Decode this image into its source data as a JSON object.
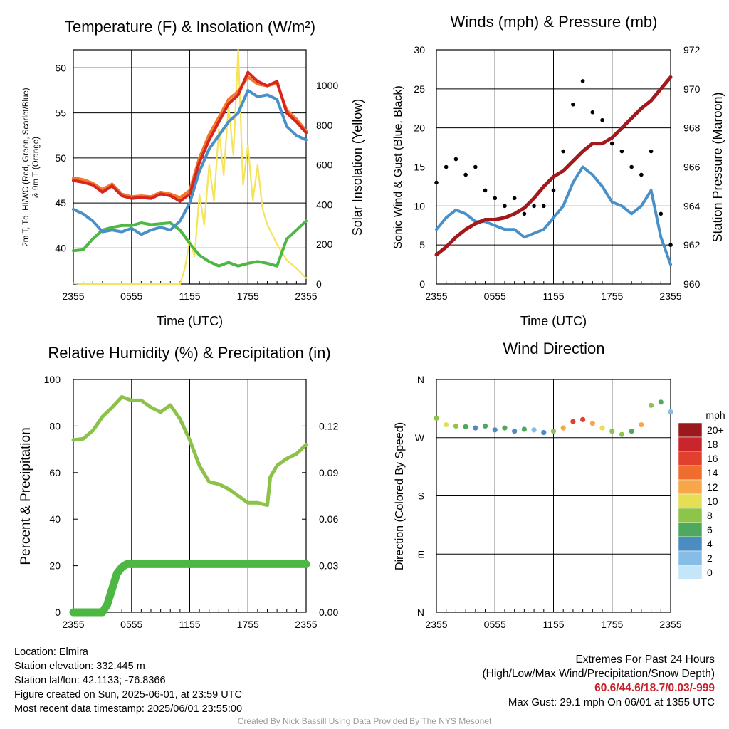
{
  "colors": {
    "temp": "#d7261e",
    "heatindex": "#f0792b",
    "dewpoint": "#4db744",
    "scarlet": "#4a90c8",
    "solar": "#f5e35a",
    "pressure": "#a3181b",
    "sonic": "#4a90c8",
    "gust": "#000000",
    "rh": "#8cc24a",
    "precip": "#4db744"
  },
  "time_ticks": [
    "2355",
    "0555",
    "1155",
    "1755",
    "2355"
  ],
  "chart_data": [
    {
      "type": "line",
      "title": "Temperature (F) & Insolation (W/m²)",
      "xlabel": "Time (UTC)",
      "ylabel_left_lines": [
        "2m T, Td, HI/WC (Red, Green, Scarlet/Blue)",
        "& 9m T (Orange)"
      ],
      "ylabel_right": "Solar Insolation (Yellow)",
      "ylim_left": [
        36,
        62
      ],
      "ylim_right": [
        0,
        1180
      ],
      "yticks_left": [
        40,
        45,
        50,
        55,
        60
      ],
      "yticks_right": [
        0,
        200,
        400,
        600,
        800,
        1000
      ],
      "x_hours": [
        0,
        1,
        2,
        3,
        4,
        5,
        6,
        7,
        8,
        9,
        10,
        11,
        12,
        13,
        14,
        15,
        16,
        17,
        18,
        19,
        20,
        21,
        22,
        23,
        24
      ],
      "series": [
        {
          "name": "2m T",
          "color_key": "temp",
          "axis": "left",
          "x": [
            0,
            1,
            2,
            3,
            4,
            5,
            6,
            7,
            8,
            9,
            10,
            11,
            12,
            13,
            14,
            15,
            16,
            17,
            18,
            19,
            20,
            21,
            22,
            23,
            24
          ],
          "values": [
            47.5,
            47.3,
            47.0,
            46.2,
            46.9,
            45.8,
            45.5,
            45.6,
            45.5,
            46.0,
            45.8,
            45.2,
            46.0,
            49.5,
            52.0,
            54.0,
            56.0,
            57.0,
            59.5,
            58.5,
            58.0,
            58.5,
            55.0,
            54.0,
            52.8
          ]
        },
        {
          "name": "9m T",
          "color_key": "heatindex",
          "axis": "left",
          "x": [
            0,
            1,
            2,
            3,
            4,
            5,
            6,
            7,
            8,
            9,
            10,
            11,
            12,
            13,
            14,
            15,
            16,
            17,
            18,
            19,
            20,
            21,
            22,
            23,
            24
          ],
          "values": [
            47.8,
            47.6,
            47.2,
            46.5,
            47.1,
            46.0,
            45.7,
            45.8,
            45.7,
            46.2,
            46.0,
            45.6,
            46.4,
            50.0,
            52.6,
            54.5,
            56.5,
            57.4,
            59.0,
            58.2,
            58.0,
            58.3,
            55.3,
            54.3,
            53.0
          ]
        },
        {
          "name": "HI/WC",
          "color_key": "scarlet",
          "axis": "left",
          "x": [
            0,
            1,
            2,
            3,
            4,
            5,
            6,
            7,
            8,
            9,
            10,
            11,
            12,
            13,
            14,
            15,
            16,
            17,
            18,
            19,
            20,
            21,
            22,
            23,
            24
          ],
          "values": [
            44.3,
            43.8,
            43.0,
            41.8,
            42.0,
            41.8,
            42.2,
            41.5,
            42.0,
            42.3,
            42.0,
            43.0,
            45.0,
            48.5,
            51.0,
            52.5,
            54.0,
            55.0,
            57.5,
            56.8,
            57.0,
            56.5,
            53.5,
            52.5,
            52.0
          ]
        },
        {
          "name": "Td",
          "color_key": "dewpoint",
          "axis": "left",
          "x": [
            0,
            1,
            2,
            3,
            4,
            5,
            6,
            7,
            8,
            9,
            10,
            11,
            12,
            13,
            14,
            15,
            16,
            17,
            18,
            19,
            20,
            21,
            22,
            23,
            24
          ],
          "values": [
            39.7,
            39.8,
            41.0,
            42.0,
            42.3,
            42.5,
            42.5,
            42.8,
            42.6,
            42.7,
            42.8,
            42.0,
            40.5,
            39.2,
            38.5,
            38.0,
            38.4,
            38.0,
            38.3,
            38.5,
            38.3,
            38.0,
            41.0,
            42.0,
            43.0
          ]
        },
        {
          "name": "Solar",
          "color_key": "solar",
          "axis": "right",
          "x": [
            0,
            1,
            2,
            3,
            4,
            5,
            6,
            7,
            8,
            9,
            10,
            11,
            11.5,
            12,
            12.5,
            13,
            13.5,
            14,
            14.5,
            15,
            15.5,
            16,
            16.5,
            17,
            17.5,
            18,
            18.5,
            19,
            19.5,
            20,
            21,
            22,
            23,
            24
          ],
          "values": [
            5,
            0,
            0,
            0,
            0,
            0,
            0,
            0,
            0,
            0,
            0,
            0,
            80,
            220,
            140,
            450,
            300,
            600,
            420,
            780,
            550,
            900,
            650,
            1180,
            500,
            700,
            420,
            600,
            380,
            300,
            200,
            120,
            80,
            30
          ]
        }
      ]
    },
    {
      "type": "scatter",
      "title": "Winds (mph) & Pressure (mb)",
      "xlabel": "Time (UTC)",
      "ylabel_left": "Sonic Wind & Gust (Blue, Black)",
      "ylabel_right": "Station Pressure (Maroon)",
      "ylim_left": [
        0,
        30
      ],
      "ylim_right": [
        960,
        972
      ],
      "yticks_left": [
        0,
        5,
        10,
        15,
        20,
        25,
        30
      ],
      "yticks_right": [
        960,
        962,
        964,
        966,
        968,
        970,
        972
      ],
      "series": [
        {
          "name": "Sonic Wind",
          "color_key": "sonic",
          "axis": "left",
          "x": [
            0,
            1,
            2,
            3,
            4,
            5,
            6,
            7,
            8,
            9,
            10,
            11,
            12,
            13,
            14,
            15,
            16,
            17,
            18,
            19,
            20,
            21,
            22,
            23,
            24
          ],
          "values": [
            7,
            8.5,
            9.5,
            9,
            8,
            8,
            7.5,
            7,
            7,
            6,
            6.5,
            7,
            8.5,
            10,
            13,
            15,
            14,
            12.5,
            10.5,
            10,
            9,
            10,
            12,
            6,
            2.5
          ]
        },
        {
          "name": "Gust",
          "color_key": "gust",
          "axis": "left",
          "x": [
            0,
            1,
            2,
            3,
            4,
            5,
            6,
            7,
            8,
            9,
            10,
            11,
            12,
            13,
            14,
            15,
            16,
            17,
            18,
            19,
            20,
            21,
            22,
            23,
            24
          ],
          "values": [
            13,
            15,
            16,
            14,
            15,
            12,
            11,
            10,
            11,
            9,
            10,
            10,
            12,
            17,
            23,
            26,
            22,
            21,
            18,
            17,
            15,
            14,
            17,
            9,
            5
          ]
        },
        {
          "name": "Pressure",
          "color_key": "pressure",
          "axis": "right",
          "x": [
            0,
            1,
            2,
            3,
            4,
            5,
            6,
            7,
            8,
            9,
            10,
            11,
            12,
            13,
            14,
            15,
            16,
            17,
            18,
            19,
            20,
            21,
            22,
            23,
            24
          ],
          "values": [
            961.5,
            961.9,
            962.4,
            962.8,
            963.1,
            963.3,
            963.3,
            963.4,
            963.6,
            963.9,
            964.4,
            965.0,
            965.5,
            965.8,
            966.3,
            966.8,
            967.2,
            967.2,
            967.5,
            968.0,
            968.5,
            969.0,
            969.4,
            970.0,
            970.6
          ]
        }
      ]
    },
    {
      "type": "line",
      "title": "Relative Humidity (%) & Precipitation (in)",
      "ylabel_left": "Percent & Precipitation",
      "ylim_left": [
        0,
        100
      ],
      "ylim_right": [
        0,
        0.15
      ],
      "yticks_left": [
        0,
        20,
        40,
        60,
        80,
        100
      ],
      "yticks_right": [
        "0.00",
        "0.03",
        "0.06",
        "0.09",
        "0.12"
      ],
      "series": [
        {
          "name": "RH",
          "color_key": "rh",
          "axis": "left",
          "x": [
            0,
            1,
            2,
            3,
            4,
            5,
            6,
            7,
            8,
            9,
            10,
            11,
            12,
            13,
            14,
            15,
            16,
            17,
            18,
            19,
            20,
            20.3,
            21,
            22,
            23,
            24
          ],
          "values": [
            74,
            74.5,
            78,
            84,
            88,
            92.5,
            91,
            91,
            88,
            86,
            89,
            83,
            74,
            63,
            56,
            55,
            53,
            50,
            47,
            47,
            46,
            58,
            63,
            66,
            68,
            72
          ]
        },
        {
          "name": "Precipitation",
          "color_key": "precip",
          "axis": "right",
          "x": [
            0,
            1,
            2,
            3,
            3.5,
            4,
            4.5,
            5,
            5.5,
            6,
            24
          ],
          "values": [
            0,
            0,
            0,
            0,
            0.005,
            0.015,
            0.025,
            0.029,
            0.031,
            0.031,
            0.031
          ]
        }
      ]
    },
    {
      "type": "scatter",
      "title": "Wind Direction",
      "ylabel_left": "Direction (Colored By Speed)",
      "yticks_left": [
        "N",
        "W",
        "S",
        "E",
        "N"
      ],
      "ylim_left": [
        0,
        360
      ],
      "legend_title": "mph",
      "legend_labels": [
        "20+",
        "18",
        "16",
        "14",
        "12",
        "10",
        "8",
        "6",
        "4",
        "2",
        "0"
      ],
      "legend_colors": [
        "#99191c",
        "#c9262b",
        "#e2402f",
        "#ef6d2f",
        "#f7a64a",
        "#e6df55",
        "#8dc44a",
        "#4ea860",
        "#4b8cc2",
        "#86bde6",
        "#c5e6f8"
      ],
      "series": [
        {
          "name": "direction",
          "x": [
            0,
            1,
            2,
            3,
            4,
            5,
            6,
            7,
            8,
            9,
            10,
            11,
            12,
            13,
            14,
            15,
            16,
            17,
            18,
            19,
            20,
            21,
            22,
            23,
            24
          ],
          "values": [
            300,
            290,
            288,
            287,
            285,
            288,
            282,
            285,
            280,
            283,
            282,
            278,
            280,
            285,
            295,
            298,
            292,
            285,
            280,
            275,
            280,
            290,
            320,
            325,
            310
          ],
          "speeds": [
            8,
            10,
            9,
            7,
            5,
            6,
            4,
            6,
            4,
            6,
            3,
            4,
            9,
            13,
            17,
            16,
            12,
            10,
            8,
            9,
            7,
            12,
            9,
            7,
            3
          ]
        }
      ]
    }
  ],
  "info": {
    "location": "Location: Elmira",
    "elevation": "Station elevation: 332.445 m",
    "latlon": "Station lat/lon: 42.1133; -76.8366",
    "created": "Figure created on Sun, 2025-06-01, at 23:59 UTC",
    "recent": "Most recent data timestamp: 2025/06/01 23:55:00"
  },
  "extremes": {
    "title": "Extremes For Past 24 Hours",
    "subtitle": "(High/Low/Max Wind/Precipitation/Snow Depth)",
    "values": "60.6/44.6/18.7/0.03/-999",
    "gust": "Max Gust: 29.1 mph On 06/01 at 1355 UTC"
  },
  "credit": "Created By Nick Bassill Using Data Provided By The NYS Mesonet"
}
